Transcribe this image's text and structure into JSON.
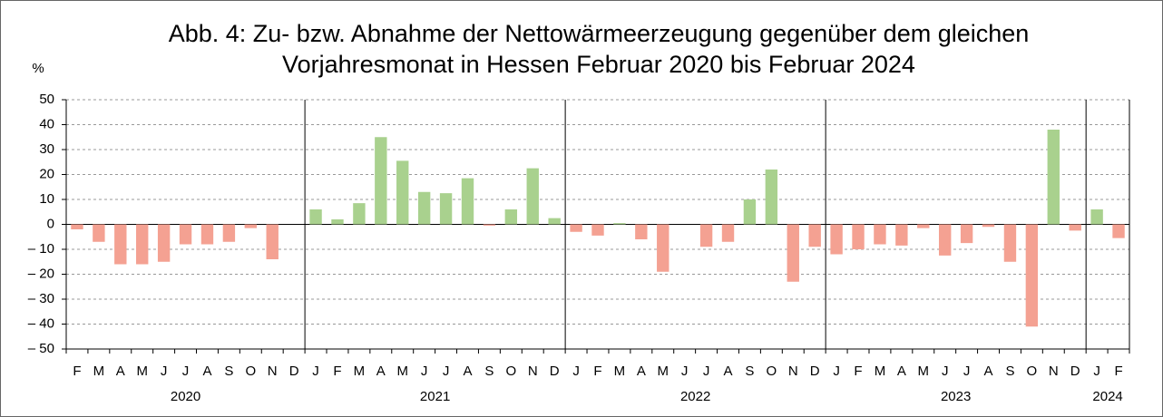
{
  "chart_data": {
    "type": "bar",
    "title": [
      "Abb. 4: Zu- bzw. Abnahme der Nettowärmeerzeugung gegenüber dem gleichen",
      "Vorjahresmonat in Hessen Februar 2020 bis Februar 2024"
    ],
    "y_label": "%",
    "categories": [
      "F",
      "M",
      "A",
      "M",
      "J",
      "J",
      "A",
      "S",
      "O",
      "N",
      "D",
      "J",
      "F",
      "M",
      "A",
      "M",
      "J",
      "J",
      "A",
      "S",
      "O",
      "N",
      "D",
      "J",
      "F",
      "M",
      "A",
      "M",
      "J",
      "J",
      "A",
      "S",
      "O",
      "N",
      "D",
      "J",
      "F",
      "M",
      "A",
      "M",
      "J",
      "J",
      "A",
      "S",
      "O",
      "N",
      "D",
      "J",
      "F"
    ],
    "values": [
      -2,
      -7,
      -16,
      -16,
      -15,
      -8,
      -8,
      -7,
      -1.5,
      -14,
      0,
      6,
      2,
      8.5,
      35,
      25.5,
      13,
      12.5,
      18.5,
      -0.5,
      6,
      22.5,
      2.5,
      -3,
      -4.5,
      0.5,
      -6,
      -19,
      0,
      -9,
      -7,
      10,
      22,
      -23,
      -9,
      -12,
      -10,
      -8,
      -8.5,
      -1.5,
      -12.5,
      -7.5,
      -1,
      -15,
      -41,
      38,
      -2.5,
      6,
      -5.5
    ],
    "year_groups": [
      {
        "label": "2020",
        "count": 11
      },
      {
        "label": "2021",
        "count": 12
      },
      {
        "label": "2022",
        "count": 12
      },
      {
        "label": "2023",
        "count": 12
      },
      {
        "label": "2024",
        "count": 2
      }
    ],
    "positive_color": "#a9d18e",
    "negative_color": "#f4a192",
    "ylim": [
      -50,
      50
    ],
    "yticks": [
      {
        "value": -50,
        "label": "– 50"
      },
      {
        "value": -40,
        "label": "– 40"
      },
      {
        "value": -30,
        "label": "– 30"
      },
      {
        "value": -20,
        "label": "– 20"
      },
      {
        "value": -10,
        "label": "– 10"
      },
      0,
      10,
      20,
      30,
      40,
      50
    ],
    "grid": true
  }
}
